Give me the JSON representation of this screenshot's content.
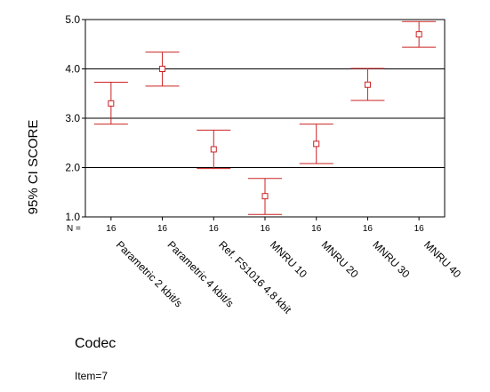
{
  "chart_data": {
    "type": "errorbar",
    "ylabel": "95% CI SCORE",
    "xlabel": "Codec",
    "n_label": "N =",
    "note": "Item=7",
    "ylim": [
      1.0,
      5.0
    ],
    "y_ticks": [
      "1.0",
      "2.0",
      "3.0",
      "4.0",
      "5.0"
    ],
    "grid_lines_y": [
      2.0,
      3.0,
      4.0
    ],
    "categories": [
      "Parametric 2 kbit/s",
      "Parametric 4 kbit/s",
      "Ref. FS1016 4.8 kbit",
      "MNRU 10",
      "MNRU 20",
      "MNRU 30",
      "MNRU 40"
    ],
    "n_values": [
      "16",
      "16",
      "16",
      "16",
      "16",
      "16",
      "16"
    ],
    "series": [
      {
        "mean": [
          3.3,
          4.0,
          2.37,
          1.42,
          2.48,
          3.68,
          4.7
        ],
        "lower": [
          2.88,
          3.65,
          1.98,
          1.05,
          2.08,
          3.36,
          4.44
        ],
        "upper": [
          3.73,
          4.34,
          2.76,
          1.78,
          2.88,
          4.01,
          4.96
        ]
      }
    ],
    "color": "#cc2222"
  }
}
